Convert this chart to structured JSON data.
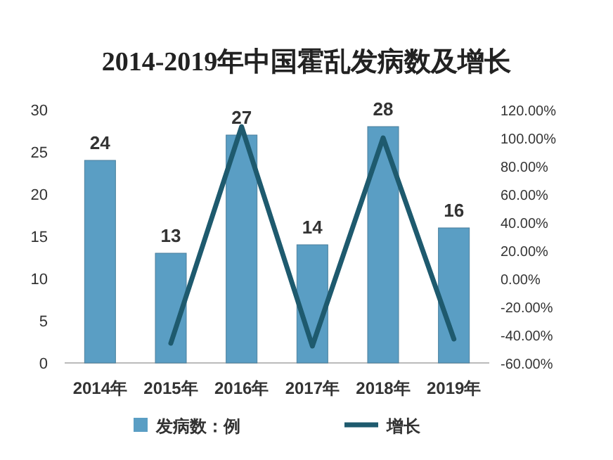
{
  "chart_data": {
    "type": "bar",
    "title": "2014-2019年中国霍乱发病数及增长",
    "categories": [
      "2014年",
      "2015年",
      "2016年",
      "2017年",
      "2018年",
      "2019年"
    ],
    "series": [
      {
        "name": "发病数：例",
        "color": "#5a9ec4",
        "values": [
          24,
          13,
          27,
          14,
          28,
          16
        ],
        "value_labels": [
          "24",
          "13",
          "27",
          "14",
          "28",
          "16"
        ]
      },
      {
        "name": "增长",
        "type": "line",
        "axis": "y2",
        "color": "#1e5a6e",
        "values": [
          null,
          -46,
          108,
          -48,
          100,
          -43
        ]
      }
    ],
    "ylim": [
      0,
      30
    ],
    "yticks": [
      0,
      5,
      10,
      15,
      20,
      25,
      30
    ],
    "y2lim": [
      -60,
      120
    ],
    "y2ticks": [
      {
        "value": -60,
        "label": "-60.00%"
      },
      {
        "value": -40,
        "label": "-40.00%"
      },
      {
        "value": -20,
        "label": "-20.00%"
      },
      {
        "value": 0,
        "label": "0.00%"
      },
      {
        "value": 20,
        "label": "20.00%"
      },
      {
        "value": 40,
        "label": "40.00%"
      },
      {
        "value": 60,
        "label": "60.00%"
      },
      {
        "value": 80,
        "label": "80.00%"
      },
      {
        "value": 100,
        "label": "100.00%"
      },
      {
        "value": 120,
        "label": "120.00%"
      }
    ],
    "legend": "bottom"
  }
}
